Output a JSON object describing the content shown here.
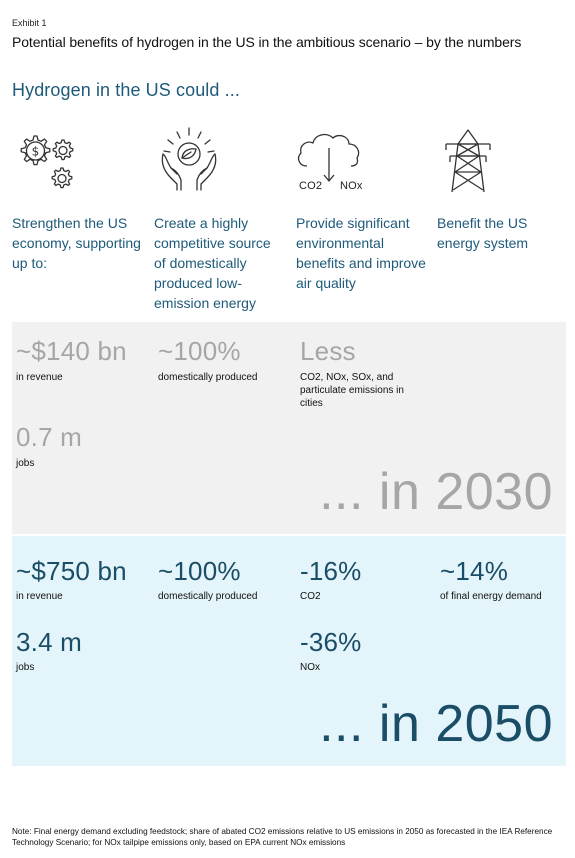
{
  "header": {
    "exhibit": "Exhibit 1",
    "title": "Potential benefits of hydrogen in the US in the ambitious scenario – by the numbers",
    "subtitle": "Hydrogen in the US could ..."
  },
  "columns": [
    {
      "icon": "dollar-gears-icon",
      "heading": "Strengthen the US economy, supporting up to:"
    },
    {
      "icon": "hands-leaf-icon",
      "heading": "Create a highly competitive source of domestically produced low-emission energy"
    },
    {
      "icon": "cloud-emissions-icon",
      "icon_text_left": "CO2",
      "icon_text_right": "NOx",
      "heading": "Provide significant environmental benefits and improve air quality"
    },
    {
      "icon": "power-pylon-icon",
      "heading": "Benefit the US energy system"
    }
  ],
  "band_2030": {
    "label": "... in 2030",
    "revenue_value": "~$140 bn",
    "revenue_caption": "in revenue",
    "jobs_value": "0.7 m",
    "jobs_caption": "jobs",
    "domestic_value": "~100%",
    "domestic_caption": "domestically produced",
    "emissions_value": "Less",
    "emissions_caption": "CO2, NOx, SOx, and particulate emissions in cities"
  },
  "band_2050": {
    "label": "... in 2050",
    "revenue_value": "~$750 bn",
    "revenue_caption": "in revenue",
    "jobs_value": "3.4 m",
    "jobs_caption": "jobs",
    "domestic_value": "~100%",
    "domestic_caption": "domestically produced",
    "co2_value": "-16%",
    "co2_caption": "CO2",
    "nox_value": "-36%",
    "nox_caption": "NOx",
    "energy_value": "~14%",
    "energy_caption": "of final energy demand"
  },
  "note": "Note: Final energy demand excluding feedstock; share of abated CO2 emissions relative to US emissions in 2050 as forecasted in the IEA Reference Technology Scenario; for NOx tailpipe emissions only, based on EPA current NOx emissions",
  "colors": {
    "accent_blue": "#1e5a7a",
    "value_blue": "#1a4d66",
    "value_gray": "#a6a6a6",
    "band_2030_bg": "#f1f1f1",
    "band_2050_bg": "#e3f4fa"
  }
}
